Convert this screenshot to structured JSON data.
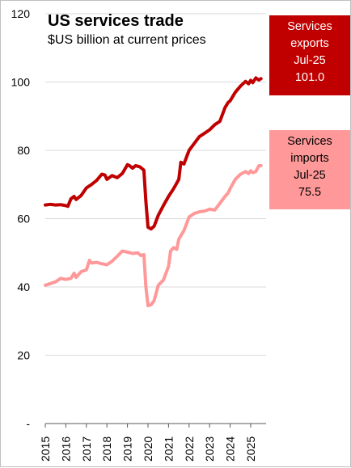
{
  "header": {
    "title": "US services trade",
    "subtitle": "$US billion at current prices"
  },
  "callouts": {
    "exports": {
      "line1": "Services",
      "line2": "exports",
      "line3": "Jul-25",
      "line4": "101.0"
    },
    "imports": {
      "line1": "Services",
      "line2": "imports",
      "line3": "Jul-25",
      "line4": "75.5"
    }
  },
  "colors": {
    "exports": "#c00000",
    "imports": "#ff9999",
    "gridline": "#d9d9d9",
    "axis": "#595959",
    "text": "#000000"
  },
  "chart_data": {
    "type": "line",
    "title": "US services trade",
    "subtitle": "$US billion at current prices",
    "xlabel": "",
    "ylabel": "",
    "ylim": [
      0,
      120
    ],
    "yticks": [
      "-",
      "20",
      "40",
      "60",
      "80",
      "100",
      "120"
    ],
    "xticks": [
      "2015",
      "2016",
      "2017",
      "2018",
      "2019",
      "2020",
      "2021",
      "2022",
      "2023",
      "2024",
      "2025"
    ],
    "xlim": [
      2015,
      2025.75
    ],
    "grid": true,
    "series": [
      {
        "name": "Services exports",
        "points": [
          [
            2015.0,
            64.0
          ],
          [
            2015.25,
            64.2
          ],
          [
            2015.5,
            64.0
          ],
          [
            2015.75,
            64.1
          ],
          [
            2016.0,
            63.8
          ],
          [
            2016.1,
            63.6
          ],
          [
            2016.25,
            65.8
          ],
          [
            2016.4,
            66.5
          ],
          [
            2016.5,
            65.6
          ],
          [
            2016.75,
            66.8
          ],
          [
            2017.0,
            69.0
          ],
          [
            2017.25,
            70.0
          ],
          [
            2017.5,
            71.2
          ],
          [
            2017.75,
            73.0
          ],
          [
            2017.9,
            72.8
          ],
          [
            2018.0,
            71.5
          ],
          [
            2018.25,
            72.6
          ],
          [
            2018.5,
            72.0
          ],
          [
            2018.75,
            73.2
          ],
          [
            2019.0,
            75.8
          ],
          [
            2019.1,
            75.5
          ],
          [
            2019.25,
            74.8
          ],
          [
            2019.4,
            75.5
          ],
          [
            2019.6,
            75.2
          ],
          [
            2019.8,
            74.2
          ],
          [
            2019.9,
            65.0
          ],
          [
            2020.0,
            57.5
          ],
          [
            2020.15,
            57.0
          ],
          [
            2020.3,
            57.8
          ],
          [
            2020.5,
            61.0
          ],
          [
            2020.75,
            63.8
          ],
          [
            2021.0,
            66.5
          ],
          [
            2021.25,
            68.8
          ],
          [
            2021.5,
            71.5
          ],
          [
            2021.6,
            76.5
          ],
          [
            2021.75,
            76.0
          ],
          [
            2022.0,
            80.0
          ],
          [
            2022.25,
            82.0
          ],
          [
            2022.5,
            84.0
          ],
          [
            2022.75,
            85.0
          ],
          [
            2023.0,
            86.0
          ],
          [
            2023.25,
            87.5
          ],
          [
            2023.5,
            88.5
          ],
          [
            2023.75,
            92.5
          ],
          [
            2023.9,
            94.0
          ],
          [
            2024.0,
            94.5
          ],
          [
            2024.25,
            97.0
          ],
          [
            2024.5,
            98.8
          ],
          [
            2024.75,
            100.2
          ],
          [
            2024.9,
            99.5
          ],
          [
            2025.0,
            100.5
          ],
          [
            2025.1,
            99.8
          ],
          [
            2025.25,
            101.2
          ],
          [
            2025.4,
            100.6
          ],
          [
            2025.5,
            101.0
          ]
        ]
      },
      {
        "name": "Services imports",
        "points": [
          [
            2015.0,
            40.5
          ],
          [
            2015.25,
            41.0
          ],
          [
            2015.5,
            41.5
          ],
          [
            2015.75,
            42.5
          ],
          [
            2016.0,
            42.2
          ],
          [
            2016.25,
            42.5
          ],
          [
            2016.4,
            44.0
          ],
          [
            2016.5,
            42.8
          ],
          [
            2016.75,
            44.5
          ],
          [
            2017.0,
            45.0
          ],
          [
            2017.15,
            47.8
          ],
          [
            2017.25,
            47.0
          ],
          [
            2017.5,
            47.2
          ],
          [
            2017.75,
            46.8
          ],
          [
            2018.0,
            46.5
          ],
          [
            2018.25,
            47.5
          ],
          [
            2018.5,
            49.0
          ],
          [
            2018.75,
            50.5
          ],
          [
            2019.0,
            50.2
          ],
          [
            2019.25,
            49.8
          ],
          [
            2019.5,
            50.0
          ],
          [
            2019.65,
            49.2
          ],
          [
            2019.8,
            49.5
          ],
          [
            2019.9,
            40.0
          ],
          [
            2020.0,
            34.5
          ],
          [
            2020.15,
            34.8
          ],
          [
            2020.3,
            36.0
          ],
          [
            2020.5,
            40.5
          ],
          [
            2020.75,
            42.0
          ],
          [
            2021.0,
            46.0
          ],
          [
            2021.1,
            50.5
          ],
          [
            2021.25,
            51.5
          ],
          [
            2021.4,
            51.0
          ],
          [
            2021.5,
            54.0
          ],
          [
            2021.75,
            56.5
          ],
          [
            2022.0,
            60.5
          ],
          [
            2022.25,
            61.5
          ],
          [
            2022.5,
            62.0
          ],
          [
            2022.75,
            62.2
          ],
          [
            2023.0,
            62.8
          ],
          [
            2023.25,
            62.5
          ],
          [
            2023.5,
            64.5
          ],
          [
            2023.75,
            66.5
          ],
          [
            2023.9,
            67.5
          ],
          [
            2024.0,
            68.8
          ],
          [
            2024.25,
            71.5
          ],
          [
            2024.5,
            73.0
          ],
          [
            2024.75,
            73.8
          ],
          [
            2024.9,
            73.2
          ],
          [
            2025.0,
            74.0
          ],
          [
            2025.1,
            73.5
          ],
          [
            2025.25,
            73.8
          ],
          [
            2025.4,
            75.5
          ],
          [
            2025.5,
            75.5
          ]
        ]
      }
    ]
  }
}
